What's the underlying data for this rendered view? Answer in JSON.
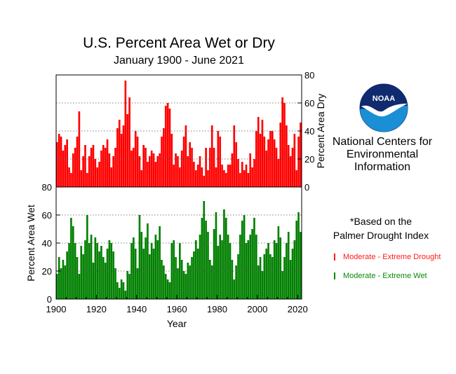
{
  "chart_data": {
    "type": "bar",
    "title": "U.S. Percent Area Wet or Dry",
    "subtitle": "January 1900 - June 2021",
    "xlabel": "Year",
    "xlim": [
      1900,
      2022
    ],
    "x_ticks": [
      "1900",
      "1920",
      "1940",
      "1960",
      "1980",
      "2000",
      "2020"
    ],
    "panels": [
      {
        "name": "Moderate - Extreme Drought",
        "ylabel": "Percent Area Dry",
        "ylim": [
          0,
          80
        ],
        "y_ticks": [
          "0",
          "20",
          "40",
          "60",
          "80"
        ],
        "color": "#ff0000",
        "grid": "dotted",
        "series": {
          "name": "Moderate - Extreme Drought",
          "x": [
            1900,
            1901,
            1902,
            1903,
            1904,
            1905,
            1906,
            1907,
            1908,
            1909,
            1910,
            1911,
            1912,
            1913,
            1914,
            1915,
            1916,
            1917,
            1918,
            1919,
            1920,
            1921,
            1922,
            1923,
            1924,
            1925,
            1926,
            1927,
            1928,
            1929,
            1930,
            1931,
            1932,
            1933,
            1934,
            1935,
            1936,
            1937,
            1938,
            1939,
            1940,
            1941,
            1942,
            1943,
            1944,
            1945,
            1946,
            1947,
            1948,
            1949,
            1950,
            1951,
            1952,
            1953,
            1954,
            1955,
            1956,
            1957,
            1958,
            1959,
            1960,
            1961,
            1962,
            1963,
            1964,
            1965,
            1966,
            1967,
            1968,
            1969,
            1970,
            1971,
            1972,
            1973,
            1974,
            1975,
            1976,
            1977,
            1978,
            1979,
            1980,
            1981,
            1982,
            1983,
            1984,
            1985,
            1986,
            1987,
            1988,
            1989,
            1990,
            1991,
            1992,
            1993,
            1994,
            1995,
            1996,
            1997,
            1998,
            1999,
            2000,
            2001,
            2002,
            2003,
            2004,
            2005,
            2006,
            2007,
            2008,
            2009,
            2010,
            2011,
            2012,
            2013,
            2014,
            2015,
            2016,
            2017,
            2018,
            2019,
            2020,
            2021
          ],
          "values": [
            32,
            38,
            36,
            26,
            30,
            34,
            14,
            10,
            24,
            28,
            36,
            54,
            12,
            22,
            30,
            10,
            22,
            28,
            30,
            20,
            14,
            18,
            26,
            30,
            28,
            34,
            24,
            14,
            22,
            28,
            42,
            48,
            38,
            44,
            76,
            52,
            64,
            26,
            28,
            40,
            36,
            22,
            12,
            30,
            28,
            18,
            22,
            26,
            24,
            18,
            22,
            24,
            36,
            42,
            58,
            60,
            56,
            38,
            16,
            24,
            22,
            14,
            26,
            36,
            44,
            22,
            32,
            28,
            18,
            12,
            16,
            22,
            14,
            8,
            28,
            12,
            28,
            44,
            28,
            14,
            40,
            36,
            16,
            12,
            10,
            16,
            16,
            24,
            44,
            32,
            20,
            10,
            18,
            12,
            16,
            10,
            24,
            14,
            20,
            40,
            50,
            38,
            48,
            36,
            26,
            34,
            40,
            40,
            34,
            28,
            20,
            46,
            64,
            60,
            44,
            30,
            22,
            28,
            38,
            12,
            36,
            46
          ]
        }
      },
      {
        "name": "Moderate - Extreme Wet",
        "ylabel": "Percent Area Wet",
        "ylim": [
          0,
          80
        ],
        "y_ticks": [
          "0",
          "20",
          "40",
          "60",
          "80"
        ],
        "color": "#008000",
        "grid": "dotted",
        "series": {
          "name": "Moderate - Extreme Wet",
          "x": [
            1900,
            1901,
            1902,
            1903,
            1904,
            1905,
            1906,
            1907,
            1908,
            1909,
            1910,
            1911,
            1912,
            1913,
            1914,
            1915,
            1916,
            1917,
            1918,
            1919,
            1920,
            1921,
            1922,
            1923,
            1924,
            1925,
            1926,
            1927,
            1928,
            1929,
            1930,
            1931,
            1932,
            1933,
            1934,
            1935,
            1936,
            1937,
            1938,
            1939,
            1940,
            1941,
            1942,
            1943,
            1944,
            1945,
            1946,
            1947,
            1948,
            1949,
            1950,
            1951,
            1952,
            1953,
            1954,
            1955,
            1956,
            1957,
            1958,
            1959,
            1960,
            1961,
            1962,
            1963,
            1964,
            1965,
            1966,
            1967,
            1968,
            1969,
            1970,
            1971,
            1972,
            1973,
            1974,
            1975,
            1976,
            1977,
            1978,
            1979,
            1980,
            1981,
            1982,
            1983,
            1984,
            1985,
            1986,
            1987,
            1988,
            1989,
            1990,
            1991,
            1992,
            1993,
            1994,
            1995,
            1996,
            1997,
            1998,
            1999,
            2000,
            2001,
            2002,
            2003,
            2004,
            2005,
            2006,
            2007,
            2008,
            2009,
            2010,
            2011,
            2012,
            2013,
            2014,
            2015,
            2016,
            2017,
            2018,
            2019,
            2020,
            2021
          ],
          "values": [
            18,
            30,
            22,
            28,
            24,
            34,
            40,
            58,
            52,
            40,
            30,
            18,
            38,
            32,
            42,
            60,
            40,
            46,
            26,
            44,
            40,
            34,
            38,
            30,
            26,
            36,
            42,
            40,
            34,
            22,
            12,
            8,
            14,
            12,
            6,
            20,
            18,
            40,
            44,
            36,
            22,
            60,
            48,
            36,
            44,
            54,
            32,
            40,
            36,
            46,
            42,
            52,
            28,
            24,
            18,
            14,
            12,
            40,
            42,
            30,
            22,
            40,
            28,
            20,
            18,
            26,
            24,
            30,
            34,
            42,
            36,
            46,
            58,
            70,
            56,
            48,
            28,
            24,
            50,
            62,
            38,
            46,
            42,
            64,
            58,
            46,
            40,
            28,
            14,
            24,
            32,
            46,
            56,
            60,
            40,
            42,
            46,
            50,
            58,
            46,
            24,
            30,
            20,
            32,
            36,
            40,
            32,
            30,
            42,
            40,
            52,
            44,
            20,
            30,
            40,
            48,
            28,
            36,
            42,
            56,
            62,
            48
          ]
        }
      }
    ]
  },
  "branding": {
    "logo_text": "NOAA",
    "org_line1": "National Centers for",
    "org_line2": "Environmental",
    "org_line3": "Information"
  },
  "note": {
    "line1": "*Based on the",
    "line2": "Palmer Drought Index"
  },
  "legend": {
    "drought_label": "Moderate - Extreme Drought",
    "wet_label": "Moderate - Extreme Wet",
    "drought_color": "#ff1a1a",
    "wet_color": "#0a8a0a"
  }
}
